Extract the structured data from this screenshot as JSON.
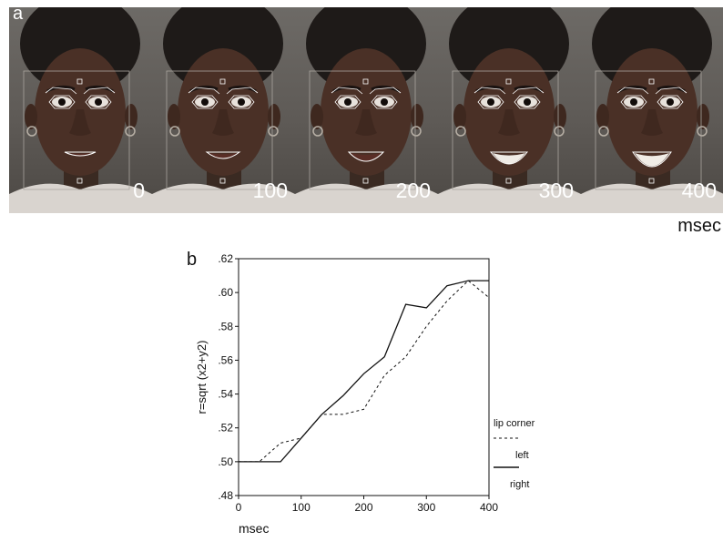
{
  "panel_a": {
    "letter": "a",
    "frames": [
      {
        "label": "0"
      },
      {
        "label": "100"
      },
      {
        "label": "200"
      },
      {
        "label": "300"
      },
      {
        "label": "400"
      }
    ],
    "x_unit": "msec"
  },
  "panel_b": {
    "letter": "b",
    "x_unit": "msec"
  },
  "legend": {
    "title": "lip corner",
    "left": "left",
    "right": "right"
  },
  "chart_data": {
    "type": "line",
    "title": "",
    "xlabel": "msec",
    "ylabel": "r=sqrt (x2+y2)",
    "xlim": [
      0,
      400
    ],
    "ylim": [
      0.48,
      0.62
    ],
    "x_ticks": [
      "0",
      "100",
      "200",
      "300",
      "400"
    ],
    "y_ticks": [
      ".48",
      ".50",
      ".52",
      ".54",
      ".56",
      ".58",
      ".60",
      ".62"
    ],
    "grid": false,
    "legend_placement": "right",
    "series": [
      {
        "name": "left",
        "style": "dashed",
        "x": [
          0,
          33,
          67,
          100,
          133,
          167,
          200,
          233,
          267,
          300,
          333,
          367,
          400
        ],
        "y": [
          0.5,
          0.5,
          0.511,
          0.514,
          0.528,
          0.528,
          0.531,
          0.551,
          0.562,
          0.58,
          0.595,
          0.607,
          0.597
        ]
      },
      {
        "name": "right",
        "style": "solid",
        "x": [
          0,
          33,
          67,
          100,
          133,
          167,
          200,
          233,
          267,
          300,
          333,
          367,
          400
        ],
        "y": [
          0.5,
          0.5,
          0.5,
          0.514,
          0.528,
          0.539,
          0.552,
          0.562,
          0.593,
          0.591,
          0.604,
          0.607,
          0.607
        ]
      }
    ]
  }
}
